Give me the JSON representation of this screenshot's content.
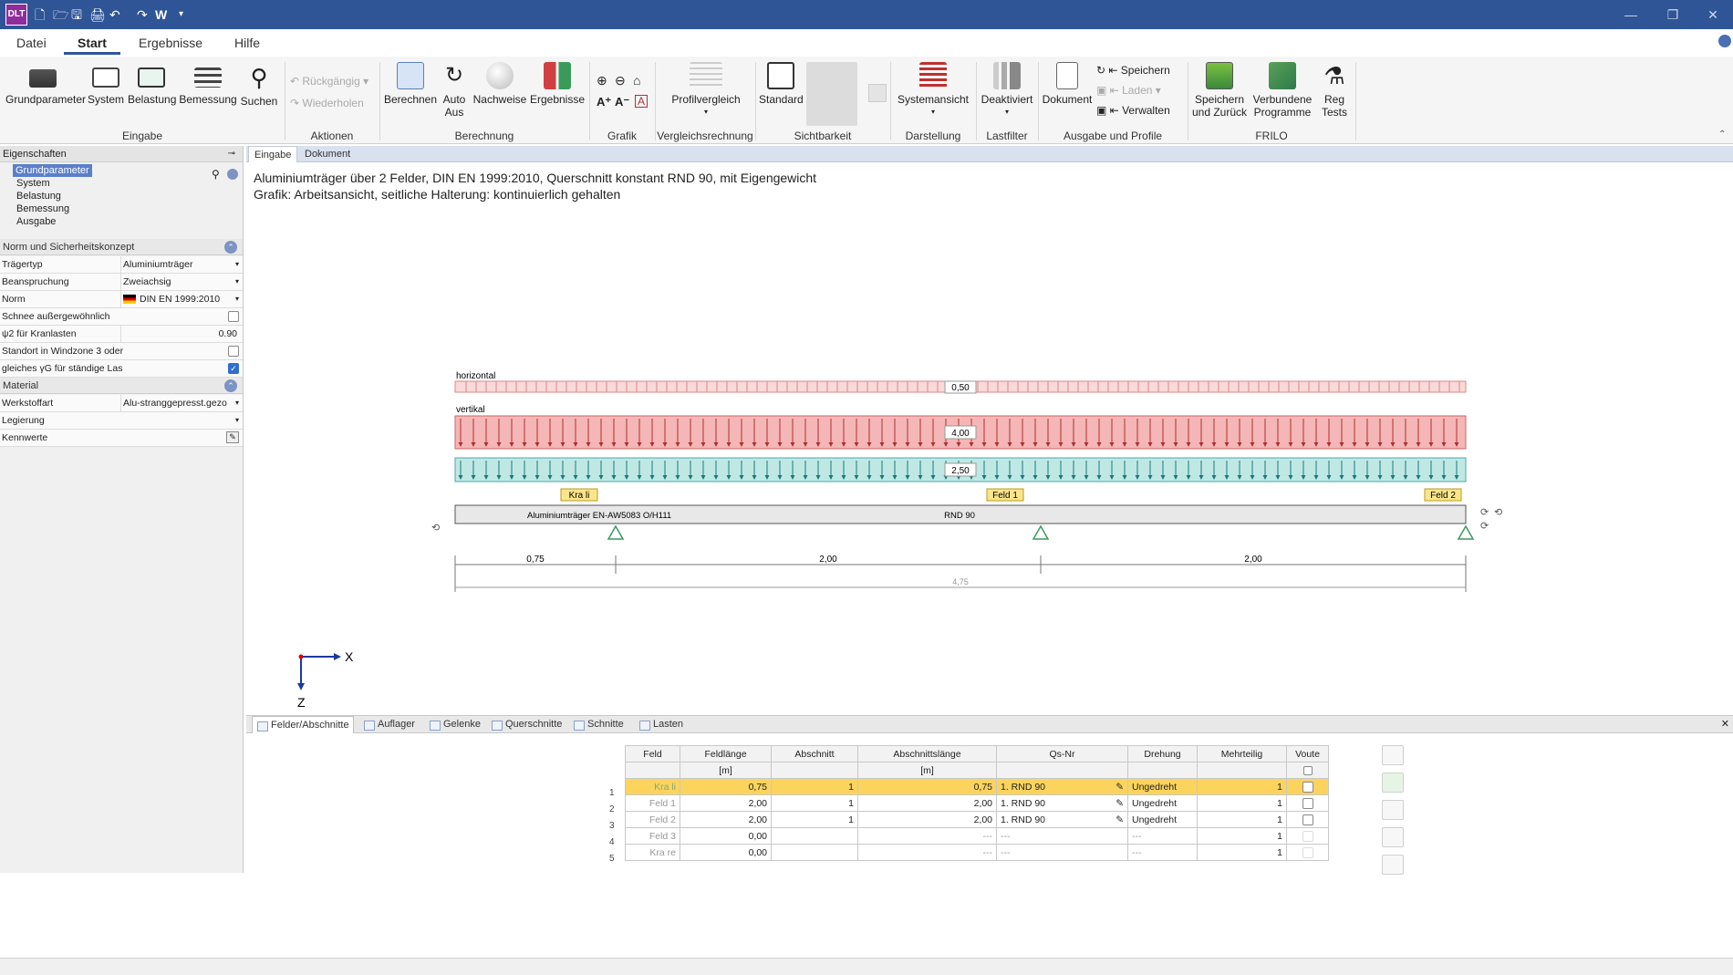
{
  "window": {
    "app_icon_text": "DLT",
    "quick_access": [
      "🗋",
      "🗁",
      "🖫",
      "🖨",
      "↶",
      "↷"
    ],
    "quick_w": "W"
  },
  "menu": {
    "items": [
      "Datei",
      "Start",
      "Ergebnisse",
      "Hilfe"
    ],
    "active": "Start"
  },
  "ribbon": {
    "groups": {
      "eingabe": {
        "label": "Eingabe",
        "buttons": [
          "Grundparameter",
          "System",
          "Belastung",
          "Bemessung",
          "Suchen"
        ]
      },
      "aktionen": {
        "label": "Aktionen",
        "buttons": [
          "Rückgängig",
          "Wiederholen"
        ]
      },
      "berechnung": {
        "label": "Berechnung",
        "buttons": [
          "Berechnen",
          "Auto\nAus",
          "Nachweise",
          "Ergebnisse"
        ]
      },
      "grafik": {
        "label": "Grafik"
      },
      "vergleich": {
        "label": "Vergleichsrechnung",
        "buttons": [
          "Profilvergleich"
        ]
      },
      "sichtbarkeit": {
        "label": "Sichtbarkeit",
        "buttons": [
          "Standard"
        ]
      },
      "darstellung": {
        "label": "Darstellung",
        "buttons": [
          "Systemansicht"
        ]
      },
      "lastfilter": {
        "label": "Lastfilter",
        "buttons": [
          "Deaktiviert"
        ]
      },
      "ausgabe": {
        "label": "Ausgabe und Profile",
        "buttons": [
          "Dokument",
          "Speichern",
          "Laden",
          "Verwalten"
        ]
      },
      "frilo": {
        "label": "FRILO",
        "buttons": [
          "Speichern\nund Zurück",
          "Verbundene\nProgramme",
          "Reg\nTests"
        ]
      }
    }
  },
  "left_panel": {
    "header": "Eigenschaften",
    "tree": [
      "Grundparameter",
      "System",
      "Belastung",
      "Bemessung",
      "Ausgabe"
    ],
    "tree_selected": "Grundparameter",
    "section_norm": "Norm und Sicherheitskonzept",
    "props_norm": [
      {
        "key": "Trägertyp",
        "value": "Aluminiumträger",
        "type": "dropdown"
      },
      {
        "key": "Beanspruchung",
        "value": "Zweiachsig",
        "type": "dropdown"
      },
      {
        "key": "Norm",
        "value": "DIN EN 1999:2010",
        "type": "dropdown"
      },
      {
        "key": "Schnee außergewöhnlich",
        "value": "",
        "type": "checkbox",
        "checked": false
      },
      {
        "key": "ψ2 für Kranlasten",
        "value": "0.90",
        "type": "number"
      },
      {
        "key": "Standort in Windzone 3 oder",
        "value": "",
        "type": "checkbox",
        "checked": false
      },
      {
        "key": "gleiches γG für ständige Las",
        "value": "",
        "type": "checkbox",
        "checked": true
      }
    ],
    "section_material": "Material",
    "props_material": [
      {
        "key": "Werkstoffart",
        "value": "Alu-stranggepresst.gezo",
        "type": "dropdown"
      },
      {
        "key": "Legierung",
        "value": "",
        "type": "dropdown"
      },
      {
        "key": "Kennwerte",
        "value": "",
        "type": "edit"
      }
    ]
  },
  "doc_tabs": [
    "Eingabe",
    "Dokument"
  ],
  "graphic": {
    "line1": "Aluminiumträger über 2 Felder, DIN EN 1999:2010, Querschnitt konstant RND 90, mit Eigengewicht",
    "line2": "Grafik: Arbeitsansicht, seitliche Halterung: kontinuierlich gehalten",
    "load_horizontal_label": "horizontal",
    "load_horizontal_value": "0,50",
    "load_vertical_label": "vertikal",
    "load_vertical_value": "4,00",
    "load_dead_value": "2,50",
    "field_tags": [
      "Kra li",
      "Feld 1",
      "Feld 2"
    ],
    "beam_material": "Aluminiumträger EN-AW5083 O/H111",
    "beam_section": "RND 90",
    "dims": [
      "0,75",
      "2,00",
      "2,00"
    ],
    "dim_total": "4,75",
    "axis_x": "X",
    "axis_z": "Z",
    "colors": {
      "horizontal": "#f9d9d9",
      "vertical": "#f4b6b6",
      "dead": "#bfe8e4",
      "beam": "#e8e8e8"
    }
  },
  "bottom_tabs": [
    "Felder/Abschnitte",
    "Auflager",
    "Gelenke",
    "Querschnitte",
    "Schnitte",
    "Lasten"
  ],
  "table": {
    "headers": [
      "Feld",
      "Feldlänge",
      "Abschnitt",
      "Abschnittslänge",
      "Qs-Nr",
      "Drehung",
      "Mehrteilig",
      "Voute"
    ],
    "units": [
      "",
      "[m]",
      "",
      "[m]",
      "",
      "",
      "",
      ""
    ],
    "rows": [
      {
        "n": "1",
        "feld": "Kra li",
        "laenge": "0,75",
        "abschnitt": "1",
        "alaenge": "0,75",
        "qs": "1. RND 90",
        "drehung": "Ungedreht",
        "mehr": "1"
      },
      {
        "n": "2",
        "feld": "Feld 1",
        "laenge": "2,00",
        "abschnitt": "1",
        "alaenge": "2,00",
        "qs": "1. RND 90",
        "drehung": "Ungedreht",
        "mehr": "1"
      },
      {
        "n": "3",
        "feld": "Feld 2",
        "laenge": "2,00",
        "abschnitt": "1",
        "alaenge": "2,00",
        "qs": "1. RND 90",
        "drehung": "Ungedreht",
        "mehr": "1"
      },
      {
        "n": "4",
        "feld": "Feld 3",
        "laenge": "0,00",
        "abschnitt": "",
        "alaenge": "---",
        "qs": "---",
        "drehung": "---",
        "mehr": "1"
      },
      {
        "n": "5",
        "feld": "Kra re",
        "laenge": "0,00",
        "abschnitt": "",
        "alaenge": "---",
        "qs": "---",
        "drehung": "---",
        "mehr": "1"
      }
    ]
  }
}
